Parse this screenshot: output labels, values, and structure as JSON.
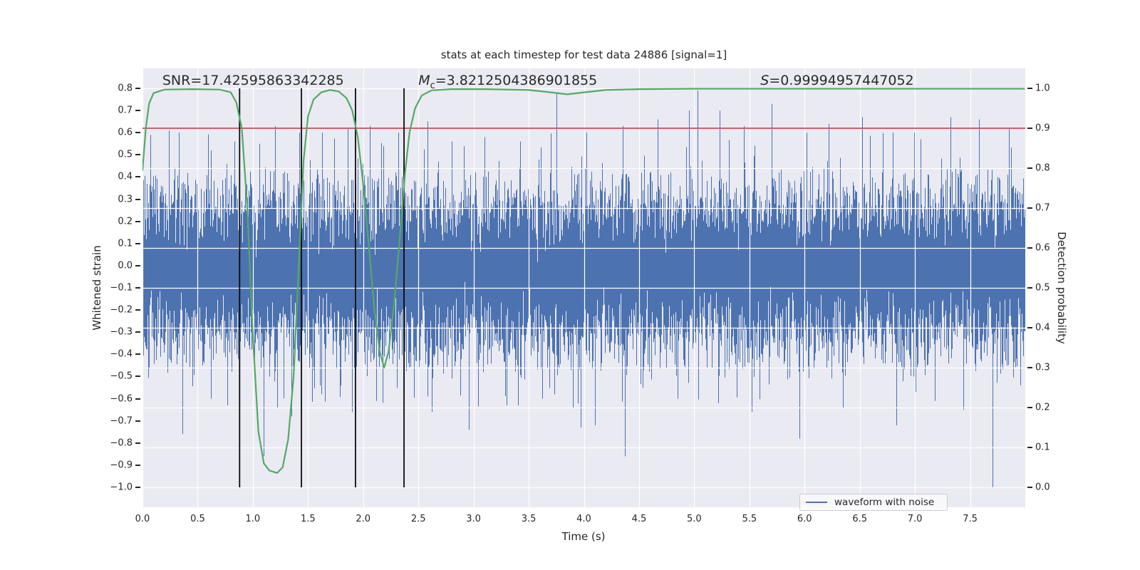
{
  "chart_data": {
    "type": "line",
    "title": "stats at each timestep for test data 24886 [signal=1]",
    "xlabel": "Time (s)",
    "ylabel_left": "Whitened strain",
    "ylabel_right": "Detection probability",
    "x_range": [
      0,
      8
    ],
    "ylim_left": [
      -1.09,
      0.89
    ],
    "ylim_right": [
      -0.05,
      1.05
    ],
    "grid": {
      "color": "#ffffff",
      "vertical_step_s": 0.5,
      "horizontal_axis": "right",
      "horizontal_step": 0.1
    },
    "background_color": "#eaeaf2",
    "x_ticks": [
      {
        "v": 0.0,
        "label": "0.0"
      },
      {
        "v": 0.5,
        "label": "0.5"
      },
      {
        "v": 1.0,
        "label": "1.0"
      },
      {
        "v": 1.5,
        "label": "1.5"
      },
      {
        "v": 2.0,
        "label": "2.0"
      },
      {
        "v": 2.5,
        "label": "2.5"
      },
      {
        "v": 3.0,
        "label": "3.0"
      },
      {
        "v": 3.5,
        "label": "3.5"
      },
      {
        "v": 4.0,
        "label": "4.0"
      },
      {
        "v": 4.5,
        "label": "4.5"
      },
      {
        "v": 5.0,
        "label": "5.0"
      },
      {
        "v": 5.5,
        "label": "5.5"
      },
      {
        "v": 6.0,
        "label": "6.0"
      },
      {
        "v": 6.5,
        "label": "6.5"
      },
      {
        "v": 7.0,
        "label": "7.0"
      },
      {
        "v": 7.5,
        "label": "7.5"
      }
    ],
    "y_ticks_left": [
      {
        "v": 0.8,
        "label": "0.8"
      },
      {
        "v": 0.7,
        "label": "0.7"
      },
      {
        "v": 0.6,
        "label": "0.6"
      },
      {
        "v": 0.5,
        "label": "0.5"
      },
      {
        "v": 0.4,
        "label": "0.4"
      },
      {
        "v": 0.3,
        "label": "0.3"
      },
      {
        "v": 0.2,
        "label": "0.2"
      },
      {
        "v": 0.1,
        "label": "0.1"
      },
      {
        "v": 0.0,
        "label": "0.0"
      },
      {
        "v": -0.1,
        "label": "−0.1"
      },
      {
        "v": -0.2,
        "label": "−0.2"
      },
      {
        "v": -0.3,
        "label": "−0.3"
      },
      {
        "v": -0.4,
        "label": "−0.4"
      },
      {
        "v": -0.5,
        "label": "−0.5"
      },
      {
        "v": -0.6,
        "label": "−0.6"
      },
      {
        "v": -0.7,
        "label": "−0.7"
      },
      {
        "v": -0.8,
        "label": "−0.8"
      },
      {
        "v": -0.9,
        "label": "−0.9"
      },
      {
        "v": -1.0,
        "label": "−1.0"
      }
    ],
    "y_ticks_right": [
      {
        "v": 1.0,
        "label": "1.0"
      },
      {
        "v": 0.9,
        "label": "0.9"
      },
      {
        "v": 0.8,
        "label": "0.8"
      },
      {
        "v": 0.7,
        "label": "0.7"
      },
      {
        "v": 0.6,
        "label": "0.6"
      },
      {
        "v": 0.5,
        "label": "0.5"
      },
      {
        "v": 0.4,
        "label": "0.4"
      },
      {
        "v": 0.3,
        "label": "0.3"
      },
      {
        "v": 0.2,
        "label": "0.2"
      },
      {
        "v": 0.1,
        "label": "0.1"
      },
      {
        "v": 0.0,
        "label": "0.0"
      }
    ],
    "threshold_line": {
      "axis": "right",
      "value": 0.9,
      "color": "#c44e52"
    },
    "event_vlines": {
      "times": [
        0.88,
        1.44,
        1.93,
        2.37
      ],
      "y_from_left": -1.0,
      "y_to_left": 0.8,
      "color": "#0a0a0a"
    },
    "annotations": [
      {
        "text": "SNR=17.42595863342285",
        "x": 0.18,
        "y_left": 0.8
      },
      {
        "italic": "M",
        "sub": "c",
        "text": "=3.8212504386901855",
        "x": 2.5,
        "y_left": 0.8
      },
      {
        "italic": "S",
        "text": "=0.99994957447052",
        "x": 5.6,
        "y_left": 0.8
      }
    ],
    "series": [
      {
        "name": "waveform with noise",
        "axis": "left",
        "color": "#4c72b0",
        "render": "dense-noise",
        "noise_model": {
          "seed": 20886,
          "mean": -0.02,
          "sigma": 0.16,
          "samples_per_column": 14,
          "mid_tail_prob": 0.3,
          "big_tail_prob": 0.05,
          "neg_bias": 0.6,
          "clip": [
            -1.0,
            0.8
          ],
          "notable_spikes": [
            [
              0.07,
              0.59
            ],
            [
              0.24,
              0.61
            ],
            [
              0.33,
              0.6
            ],
            [
              0.36,
              -0.76
            ],
            [
              0.62,
              -0.6
            ],
            [
              0.62,
              0.52
            ],
            [
              0.77,
              -0.63
            ],
            [
              0.83,
              0.56
            ],
            [
              1.06,
              0.55
            ],
            [
              1.1,
              -0.86
            ],
            [
              1.2,
              0.63
            ],
            [
              1.22,
              -0.64
            ],
            [
              1.35,
              -0.68
            ],
            [
              1.42,
              0.6
            ],
            [
              1.62,
              -0.58
            ],
            [
              1.63,
              0.6
            ],
            [
              1.86,
              0.62
            ],
            [
              1.9,
              -0.66
            ],
            [
              2.06,
              0.63
            ],
            [
              2.12,
              -0.61
            ],
            [
              2.32,
              0.6
            ],
            [
              2.37,
              -0.6
            ],
            [
              2.58,
              0.65
            ],
            [
              2.62,
              -0.66
            ],
            [
              2.8,
              0.56
            ],
            [
              2.96,
              -0.74
            ],
            [
              3.1,
              0.58
            ],
            [
              3.3,
              -0.63
            ],
            [
              3.42,
              0.56
            ],
            [
              3.62,
              -0.6
            ],
            [
              3.75,
              0.78
            ],
            [
              3.97,
              -0.73
            ],
            [
              4.02,
              0.6
            ],
            [
              4.1,
              -0.72
            ],
            [
              4.35,
              0.63
            ],
            [
              4.37,
              -0.86
            ],
            [
              4.67,
              0.66
            ],
            [
              4.85,
              -0.6
            ],
            [
              4.95,
              0.7
            ],
            [
              5.03,
              0.79
            ],
            [
              5.22,
              -0.62
            ],
            [
              5.23,
              0.7
            ],
            [
              5.45,
              0.63
            ],
            [
              5.52,
              -0.66
            ],
            [
              5.7,
              0.73
            ],
            [
              5.95,
              -0.78
            ],
            [
              6.02,
              0.6
            ],
            [
              6.22,
              0.64
            ],
            [
              6.35,
              -0.64
            ],
            [
              6.52,
              0.67
            ],
            [
              6.8,
              0.6
            ],
            [
              6.83,
              -0.72
            ],
            [
              7.05,
              0.57
            ],
            [
              7.18,
              -0.61
            ],
            [
              7.32,
              0.67
            ],
            [
              7.44,
              -0.65
            ],
            [
              7.58,
              0.66
            ],
            [
              7.7,
              -1.0
            ],
            [
              7.85,
              0.62
            ]
          ]
        }
      },
      {
        "name": "detection probability",
        "axis": "right",
        "color": "#55a868",
        "render": "curve",
        "points": [
          [
            0,
            0.795
          ],
          [
            0.03,
            0.9
          ],
          [
            0.06,
            0.962
          ],
          [
            0.1,
            0.988
          ],
          [
            0.2,
            0.997
          ],
          [
            0.45,
            0.998
          ],
          [
            0.7,
            0.997
          ],
          [
            0.8,
            0.99
          ],
          [
            0.85,
            0.965
          ],
          [
            0.9,
            0.9
          ],
          [
            0.95,
            0.7
          ],
          [
            1.0,
            0.38
          ],
          [
            1.05,
            0.14
          ],
          [
            1.1,
            0.06
          ],
          [
            1.15,
            0.042
          ],
          [
            1.22,
            0.036
          ],
          [
            1.27,
            0.05
          ],
          [
            1.32,
            0.12
          ],
          [
            1.37,
            0.28
          ],
          [
            1.42,
            0.58
          ],
          [
            1.46,
            0.82
          ],
          [
            1.5,
            0.93
          ],
          [
            1.55,
            0.972
          ],
          [
            1.62,
            0.99
          ],
          [
            1.7,
            0.996
          ],
          [
            1.78,
            0.992
          ],
          [
            1.85,
            0.975
          ],
          [
            1.9,
            0.945
          ],
          [
            1.95,
            0.88
          ],
          [
            2.0,
            0.76
          ],
          [
            2.05,
            0.61
          ],
          [
            2.1,
            0.45
          ],
          [
            2.15,
            0.34
          ],
          [
            2.19,
            0.3
          ],
          [
            2.23,
            0.34
          ],
          [
            2.28,
            0.46
          ],
          [
            2.33,
            0.62
          ],
          [
            2.38,
            0.79
          ],
          [
            2.42,
            0.89
          ],
          [
            2.47,
            0.95
          ],
          [
            2.53,
            0.982
          ],
          [
            2.62,
            0.995
          ],
          [
            2.8,
            0.998
          ],
          [
            3.1,
            0.998
          ],
          [
            3.5,
            0.996
          ],
          [
            3.7,
            0.99
          ],
          [
            3.85,
            0.985
          ],
          [
            4.0,
            0.99
          ],
          [
            4.2,
            0.996
          ],
          [
            4.5,
            0.998
          ],
          [
            5.0,
            0.999
          ],
          [
            5.5,
            0.999
          ],
          [
            6.0,
            0.999
          ],
          [
            6.5,
            0.999
          ],
          [
            7.0,
            0.999
          ],
          [
            7.5,
            0.999
          ],
          [
            7.99,
            0.999
          ]
        ]
      }
    ],
    "legend": {
      "position": "lower-right-inside",
      "entries": [
        {
          "label": "waveform with noise",
          "color": "#4c72b0"
        }
      ]
    }
  }
}
